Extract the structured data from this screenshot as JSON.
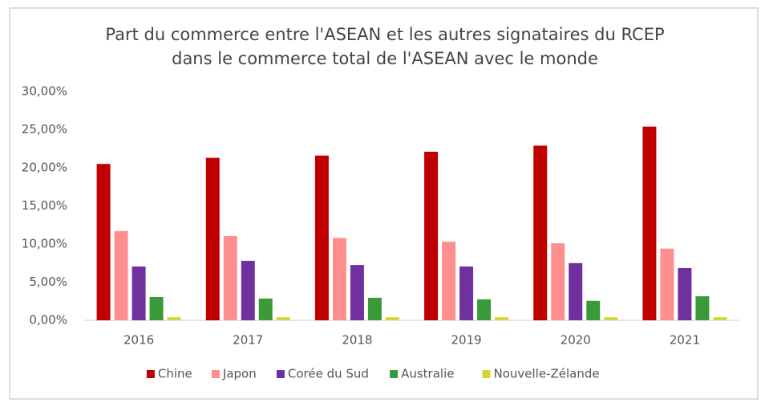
{
  "chart_data": {
    "type": "bar",
    "title": "Part du commerce entre l'ASEAN et les autres signataires du RCEP",
    "subtitle": "dans le commerce total de l'ASEAN avec le monde",
    "categories": [
      "2016",
      "2017",
      "2018",
      "2019",
      "2020",
      "2021"
    ],
    "series": [
      {
        "name": "Chine",
        "color": "#c00000",
        "values": [
          20.5,
          21.3,
          21.6,
          22.1,
          22.9,
          25.4
        ]
      },
      {
        "name": "Japon",
        "color": "#ff8f8f",
        "values": [
          11.7,
          11.05,
          10.8,
          10.3,
          10.1,
          9.4
        ]
      },
      {
        "name": "Corée du Sud",
        "color": "#7030a0",
        "values": [
          7.05,
          7.8,
          7.25,
          7.05,
          7.5,
          6.85
        ]
      },
      {
        "name": "Australie",
        "color": "#3a9a3a",
        "values": [
          3.05,
          2.85,
          2.95,
          2.75,
          2.55,
          3.15
        ]
      },
      {
        "name": "Nouvelle-Zélande",
        "color": "#d6d633",
        "values": [
          0.4,
          0.4,
          0.4,
          0.4,
          0.4,
          0.4
        ]
      }
    ],
    "ylim": [
      0,
      30
    ],
    "yticks": [
      {
        "value": 0,
        "label": "0,00%"
      },
      {
        "value": 5,
        "label": "5,00%"
      },
      {
        "value": 10,
        "label": "10,00%"
      },
      {
        "value": 15,
        "label": "15,00%"
      },
      {
        "value": 20,
        "label": "20,00%"
      },
      {
        "value": 25,
        "label": "25,00%"
      },
      {
        "value": 30,
        "label": "30,00%"
      }
    ],
    "grid": false,
    "legend": "bottom"
  }
}
